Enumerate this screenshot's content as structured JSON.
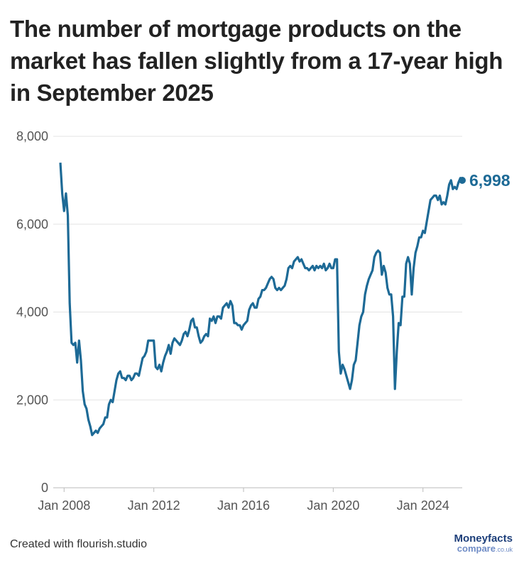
{
  "chart_data": {
    "type": "line",
    "title": "The number of mortgage products on the market has fallen slightly from a 17-year high in September 2025",
    "x": [
      "2007-11",
      "2007-12",
      "2008-01",
      "2008-02",
      "2008-03",
      "2008-04",
      "2008-05",
      "2008-06",
      "2008-07",
      "2008-08",
      "2008-09",
      "2008-10",
      "2008-11",
      "2008-12",
      "2009-01",
      "2009-02",
      "2009-03",
      "2009-04",
      "2009-05",
      "2009-06",
      "2009-07",
      "2009-08",
      "2009-09",
      "2009-10",
      "2009-11",
      "2009-12",
      "2010-01",
      "2010-02",
      "2010-03",
      "2010-04",
      "2010-05",
      "2010-06",
      "2010-07",
      "2010-08",
      "2010-09",
      "2010-10",
      "2010-11",
      "2010-12",
      "2011-01",
      "2011-02",
      "2011-03",
      "2011-04",
      "2011-05",
      "2011-06",
      "2011-07",
      "2011-08",
      "2011-09",
      "2011-10",
      "2011-11",
      "2011-12",
      "2012-01",
      "2012-02",
      "2012-03",
      "2012-04",
      "2012-05",
      "2012-06",
      "2012-07",
      "2012-08",
      "2012-09",
      "2012-10",
      "2012-11",
      "2012-12",
      "2013-01",
      "2013-02",
      "2013-03",
      "2013-04",
      "2013-05",
      "2013-06",
      "2013-07",
      "2013-08",
      "2013-09",
      "2013-10",
      "2013-11",
      "2013-12",
      "2014-01",
      "2014-02",
      "2014-03",
      "2014-04",
      "2014-05",
      "2014-06",
      "2014-07",
      "2014-08",
      "2014-09",
      "2014-10",
      "2014-11",
      "2014-12",
      "2015-01",
      "2015-02",
      "2015-03",
      "2015-04",
      "2015-05",
      "2015-06",
      "2015-07",
      "2015-08",
      "2015-09",
      "2015-10",
      "2015-11",
      "2015-12",
      "2016-01",
      "2016-02",
      "2016-03",
      "2016-04",
      "2016-05",
      "2016-06",
      "2016-07",
      "2016-08",
      "2016-09",
      "2016-10",
      "2016-11",
      "2016-12",
      "2017-01",
      "2017-02",
      "2017-03",
      "2017-04",
      "2017-05",
      "2017-06",
      "2017-07",
      "2017-08",
      "2017-09",
      "2017-10",
      "2017-11",
      "2017-12",
      "2018-01",
      "2018-02",
      "2018-03",
      "2018-04",
      "2018-05",
      "2018-06",
      "2018-07",
      "2018-08",
      "2018-09",
      "2018-10",
      "2018-11",
      "2018-12",
      "2019-01",
      "2019-02",
      "2019-03",
      "2019-04",
      "2019-05",
      "2019-06",
      "2019-07",
      "2019-08",
      "2019-09",
      "2019-10",
      "2019-11",
      "2019-12",
      "2020-01",
      "2020-02",
      "2020-03",
      "2020-04",
      "2020-05",
      "2020-06",
      "2020-07",
      "2020-08",
      "2020-09",
      "2020-10",
      "2020-11",
      "2020-12",
      "2021-01",
      "2021-02",
      "2021-03",
      "2021-04",
      "2021-05",
      "2021-06",
      "2021-07",
      "2021-08",
      "2021-09",
      "2021-10",
      "2021-11",
      "2021-12",
      "2022-01",
      "2022-02",
      "2022-03",
      "2022-04",
      "2022-05",
      "2022-06",
      "2022-07",
      "2022-08",
      "2022-09",
      "2022-10",
      "2022-11",
      "2022-12",
      "2023-01",
      "2023-02",
      "2023-03",
      "2023-04",
      "2023-05",
      "2023-06",
      "2023-07",
      "2023-08",
      "2023-09",
      "2023-10",
      "2023-11",
      "2023-12",
      "2024-01",
      "2024-02",
      "2024-03",
      "2024-04",
      "2024-05",
      "2024-06",
      "2024-07",
      "2024-08",
      "2024-09",
      "2024-10",
      "2024-11",
      "2024-12",
      "2025-01",
      "2025-02",
      "2025-03",
      "2025-04",
      "2025-05",
      "2025-06",
      "2025-07",
      "2025-08",
      "2025-09",
      "2025-10"
    ],
    "series": [
      {
        "color": "#1d6a96",
        "values": [
          7400,
          6700,
          6300,
          6700,
          6200,
          4200,
          3300,
          3250,
          3300,
          2850,
          3350,
          2900,
          2200,
          1900,
          1800,
          1550,
          1400,
          1200,
          1250,
          1300,
          1250,
          1350,
          1400,
          1450,
          1600,
          1600,
          1900,
          2000,
          1950,
          2200,
          2450,
          2600,
          2650,
          2500,
          2500,
          2450,
          2550,
          2550,
          2450,
          2500,
          2600,
          2600,
          2550,
          2750,
          2950,
          3000,
          3100,
          3350,
          3350,
          3350,
          3350,
          2750,
          2700,
          2800,
          2650,
          2850,
          3000,
          3100,
          3250,
          3050,
          3300,
          3400,
          3350,
          3300,
          3250,
          3350,
          3500,
          3550,
          3450,
          3600,
          3800,
          3850,
          3650,
          3650,
          3450,
          3300,
          3350,
          3450,
          3500,
          3450,
          3850,
          3800,
          3900,
          3750,
          3900,
          3900,
          3850,
          4100,
          4150,
          4200,
          4100,
          4250,
          4150,
          3750,
          3750,
          3700,
          3700,
          3600,
          3700,
          3750,
          3800,
          4050,
          4150,
          4200,
          4100,
          4100,
          4300,
          4350,
          4500,
          4500,
          4550,
          4650,
          4750,
          4800,
          4750,
          4550,
          4500,
          4550,
          4500,
          4550,
          4600,
          4750,
          5000,
          5050,
          5000,
          5150,
          5200,
          5250,
          5150,
          5200,
          5100,
          5000,
          5000,
          4950,
          5000,
          5050,
          4950,
          5050,
          5000,
          5050,
          5000,
          5100,
          4950,
          5000,
          5100,
          5000,
          5000,
          5200,
          5200,
          3100,
          2600,
          2800,
          2700,
          2550,
          2400,
          2250,
          2450,
          2800,
          2900,
          3300,
          3700,
          3900,
          4000,
          4400,
          4600,
          4750,
          4850,
          4950,
          5250,
          5350,
          5400,
          5350,
          4850,
          5050,
          4900,
          4550,
          4400,
          4400,
          3900,
          2250,
          3100,
          3750,
          3700,
          4350,
          4350,
          5100,
          5250,
          5100,
          4400,
          5000,
          5350,
          5500,
          5700,
          5700,
          5850,
          5800,
          6050,
          6300,
          6550,
          6600,
          6650,
          6650,
          6550,
          6650,
          6450,
          6500,
          6450,
          6650,
          6900,
          7000,
          6800,
          6850,
          6800,
          6950,
          7050,
          6998
        ]
      }
    ],
    "end_label": "6,998",
    "ylim": [
      0,
      8000
    ],
    "yticks": [
      0,
      {
        "value": 2000,
        "label": "2,000"
      },
      {
        "value": 4000,
        "label": "4,000"
      },
      {
        "value": 6000,
        "label": "6,000"
      },
      {
        "value": 8000,
        "label": "8,000"
      }
    ],
    "xticks": [
      {
        "value": "2008-01",
        "label": "Jan 2008"
      },
      {
        "value": "2012-01",
        "label": "Jan 2012"
      },
      {
        "value": "2016-01",
        "label": "Jan 2016"
      },
      {
        "value": "2020-01",
        "label": "Jan 2020"
      },
      {
        "value": "2024-01",
        "label": "Jan 2024"
      }
    ],
    "grid": true
  },
  "footer": "Created with flourish.studio",
  "logo": {
    "name": "Moneyfacts",
    "sub": "compare",
    "domain": ".co.uk"
  }
}
